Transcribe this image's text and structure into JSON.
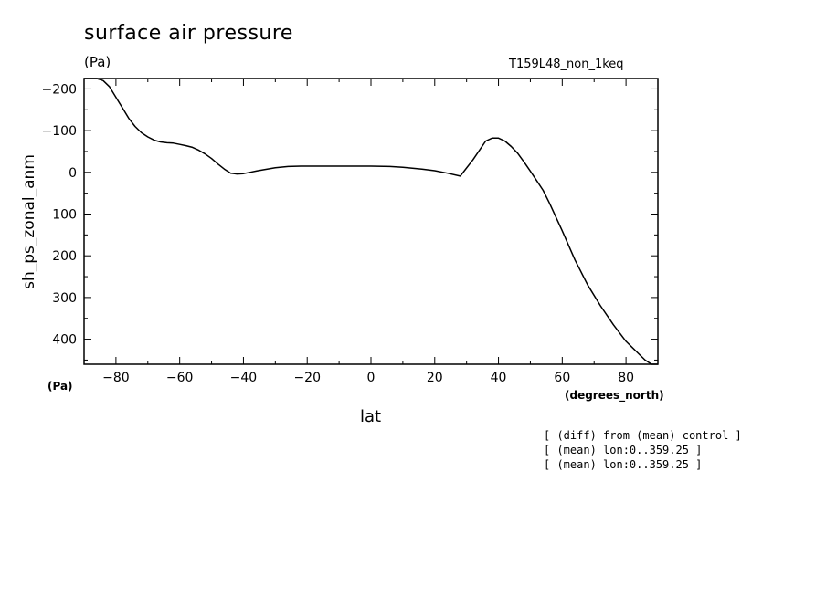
{
  "header": {
    "title": "surface air pressure",
    "y_unit": "(Pa)",
    "run_id": "T159L48_non_1keq"
  },
  "axes": {
    "ylabel": "sh_ps_zonal_anm",
    "x_unit_left": "(Pa)",
    "x_unit_right": "(degrees_north)",
    "xlabel": "lat"
  },
  "notes": [
    "[ (diff) from (mean) control ]",
    "[ (mean) lon:0..359.25 ]",
    "[ (mean) lon:0..359.25 ]"
  ],
  "chart_data": {
    "type": "line",
    "title": "surface air pressure",
    "xlabel": "lat",
    "ylabel": "sh_ps_zonal_anm",
    "y_units": "(Pa)",
    "x_units": "(degrees_north)",
    "xlim": [
      -90,
      90
    ],
    "ylim": [
      -225,
      460
    ],
    "y_inverted": true,
    "x_ticks": [
      -80,
      -60,
      -40,
      -20,
      0,
      20,
      40,
      60,
      80
    ],
    "x_tick_labels": [
      "−80",
      "−60",
      "−40",
      "−20",
      "0",
      "20",
      "40",
      "60",
      "80"
    ],
    "y_ticks": [
      -200,
      -100,
      0,
      100,
      200,
      300,
      400
    ],
    "y_tick_labels": [
      "−200",
      "−100",
      "0",
      "100",
      "200",
      "300",
      "400"
    ],
    "grid": false,
    "series": [
      {
        "x": [
          -90,
          -86,
          -84,
          -82,
          -80,
          -78,
          -76,
          -74,
          -72,
          -70,
          -68,
          -66,
          -64,
          -62,
          -60,
          -58,
          -56,
          -54,
          -52,
          -50,
          -48,
          -46,
          -44,
          -42,
          -40,
          -38,
          -36,
          -34,
          -30,
          -26,
          -22,
          -18,
          -10,
          0,
          6,
          10,
          16,
          20,
          24,
          28,
          32,
          36,
          38,
          40,
          42,
          44,
          46,
          48,
          50,
          52,
          54,
          56,
          60,
          64,
          68,
          72,
          76,
          80,
          84,
          86,
          88,
          90
        ],
        "y": [
          -230,
          -225,
          -220,
          -205,
          -180,
          -155,
          -130,
          -110,
          -95,
          -85,
          -77,
          -73,
          -71,
          -70,
          -67,
          -64,
          -60,
          -53,
          -44,
          -33,
          -20,
          -8,
          2,
          4,
          3,
          0,
          -3,
          -6,
          -11,
          -14,
          -15,
          -15,
          -15,
          -15,
          -14,
          -12,
          -8,
          -4,
          2,
          9,
          -30,
          -75,
          -82,
          -82,
          -75,
          -62,
          -46,
          -25,
          -3,
          20,
          43,
          74,
          140,
          210,
          270,
          320,
          365,
          405,
          435,
          450,
          460,
          460
        ]
      }
    ]
  }
}
